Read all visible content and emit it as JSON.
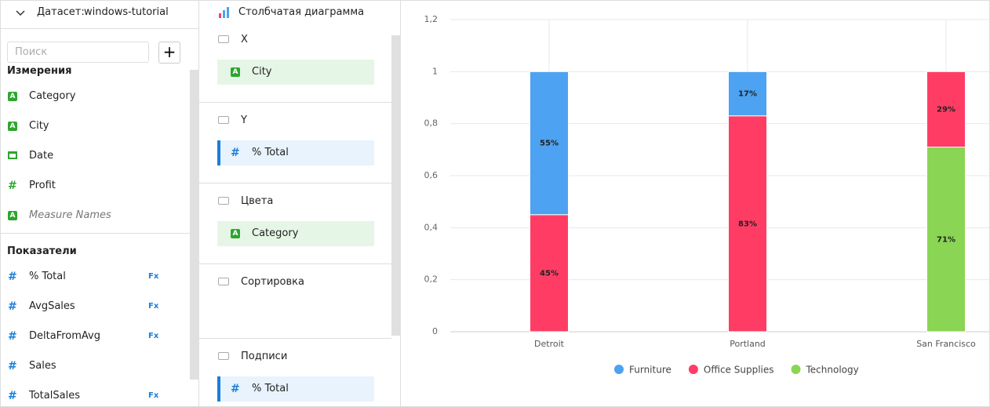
{
  "dataset": {
    "label": "Датасет:",
    "name": "windows-tutorial"
  },
  "search_placeholder": "Поиск",
  "dimensions": {
    "title": "Измерения",
    "items": [
      {
        "icon": "A",
        "name": "Category"
      },
      {
        "icon": "A",
        "name": "City"
      },
      {
        "name": "Date"
      },
      {
        "icon": "#",
        "name": "Profit"
      },
      {
        "icon": "A",
        "name": "Measure Names"
      }
    ]
  },
  "measures": {
    "title": "Показатели",
    "items": [
      {
        "icon": "#",
        "name": "% Total",
        "badge": "Fx"
      },
      {
        "icon": "#",
        "name": "AvgSales",
        "badge": "Fx"
      },
      {
        "icon": "#",
        "name": "DeltaFromAvg",
        "badge": "Fx"
      },
      {
        "icon": "#",
        "name": "Sales"
      },
      {
        "icon": "#",
        "name": "TotalSales",
        "badge": "Fx"
      }
    ]
  },
  "chart_type": "Столбчатая диаграмма",
  "sections": [
    {
      "title": "X",
      "field": {
        "icon": "A",
        "name": "City"
      }
    },
    {
      "title": "Y",
      "field": {
        "icon": "#",
        "name": "% Total"
      }
    },
    {
      "title": "Цвета",
      "field": {
        "icon": "A",
        "name": "Category"
      }
    },
    {
      "title": "Сортировка"
    },
    {
      "title": "Подписи",
      "field": {
        "icon": "#",
        "name": "% Total"
      }
    }
  ],
  "chart_data": {
    "type": "stacked_bar",
    "categories": [
      "Detroit",
      "Portland",
      "San Francisco"
    ],
    "series": [
      {
        "name": "Furniture",
        "color": "#4da2f1",
        "values": [
          0.55,
          0.17,
          null
        ],
        "value_labels": [
          "55%",
          "17%",
          null
        ]
      },
      {
        "name": "Office Supplies",
        "color": "#ff3d64",
        "values": [
          0.45,
          0.83,
          0.29
        ],
        "value_labels": [
          "45%",
          "83%",
          "29%"
        ]
      },
      {
        "name": "Technology",
        "color": "#8ad554",
        "values": [
          null,
          null,
          0.71
        ],
        "value_labels": [
          null,
          null,
          "71%"
        ]
      }
    ],
    "ylim": [
      0,
      1.2
    ],
    "yticks": [
      0,
      {
        "value": 0.2,
        "label": "0,2"
      },
      {
        "value": 0.4,
        "label": "0,4"
      },
      {
        "value": 0.6,
        "label": "0,6"
      },
      {
        "value": 0.8,
        "label": "0,8"
      },
      1,
      {
        "value": 1.2,
        "label": "1,2"
      }
    ],
    "grid": true,
    "legend": "bottom"
  }
}
